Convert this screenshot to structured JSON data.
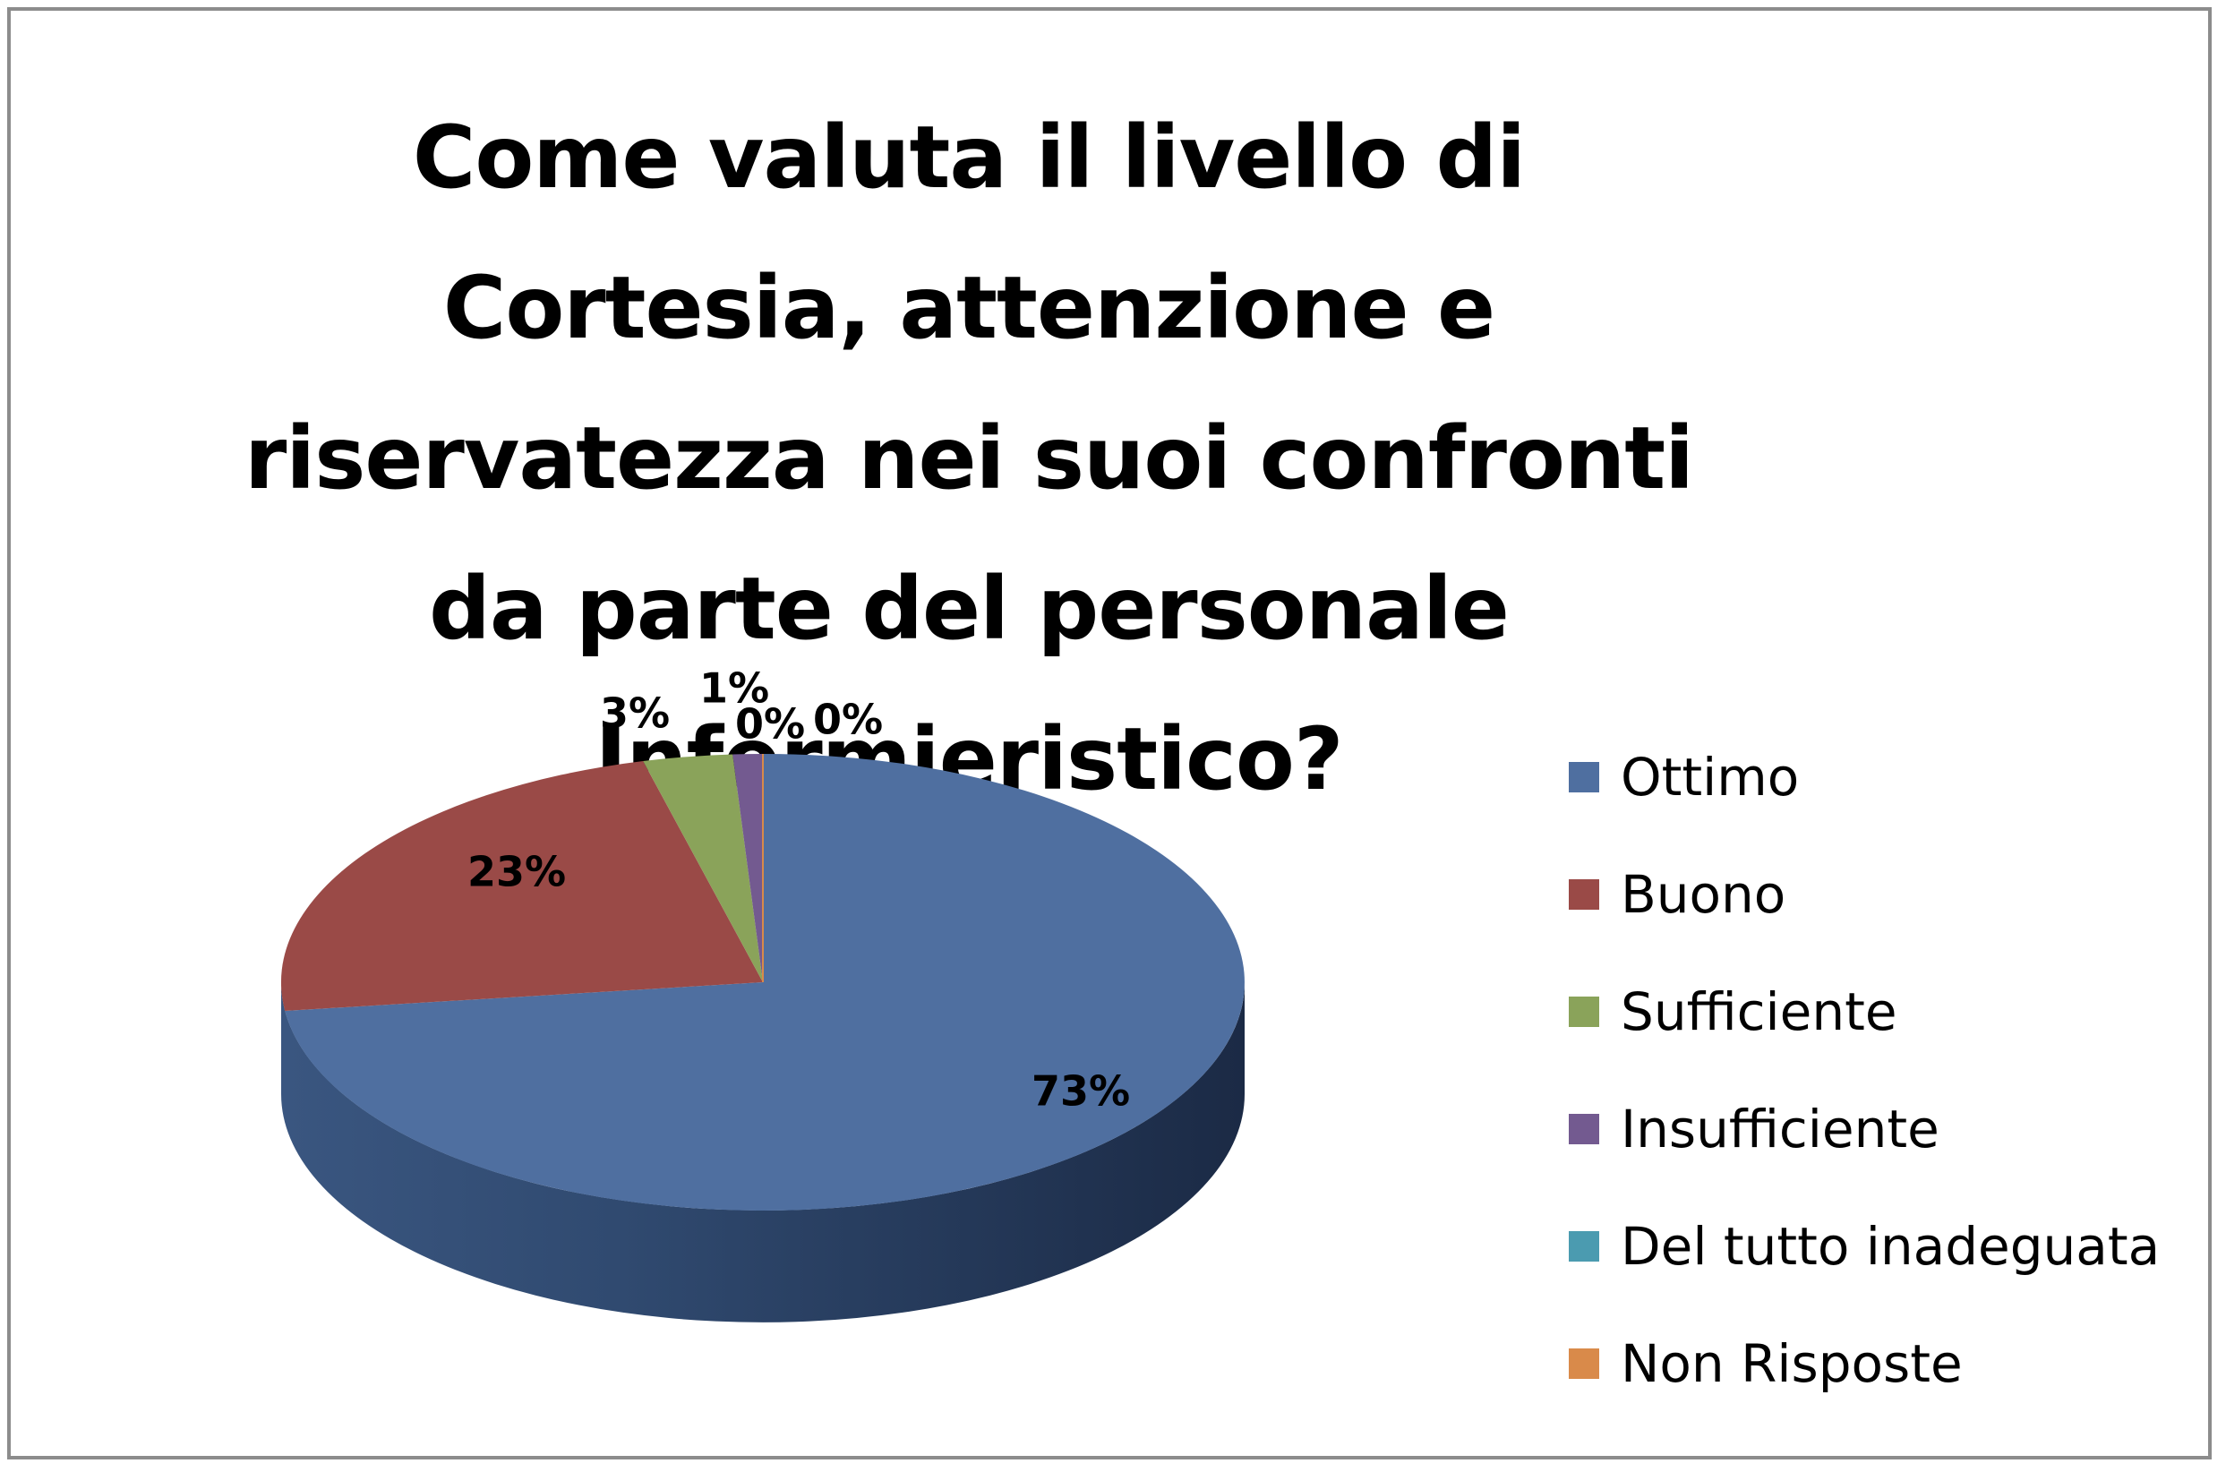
{
  "chart_data": {
    "type": "pie",
    "title": "Come valuta il livello di Cortesia, attenzione e riservatezza nei suoi confronti da parte del personale Infermieristico?",
    "categories": [
      "Ottimo",
      "Buono",
      "Sufficiente",
      "Insufficiente",
      "Del tutto inadeguata",
      "Non Risposte"
    ],
    "values": [
      73,
      23,
      3,
      1,
      0,
      0
    ],
    "data_labels": [
      "73%",
      "23%",
      "3%",
      "1%",
      "0%",
      "0%"
    ],
    "colors": [
      "#4f6fa0",
      "#9a4a47",
      "#8aa35a",
      "#735a90",
      "#4b9bb0",
      "#d98a4a"
    ],
    "legend_position": "right",
    "style": "3d"
  }
}
